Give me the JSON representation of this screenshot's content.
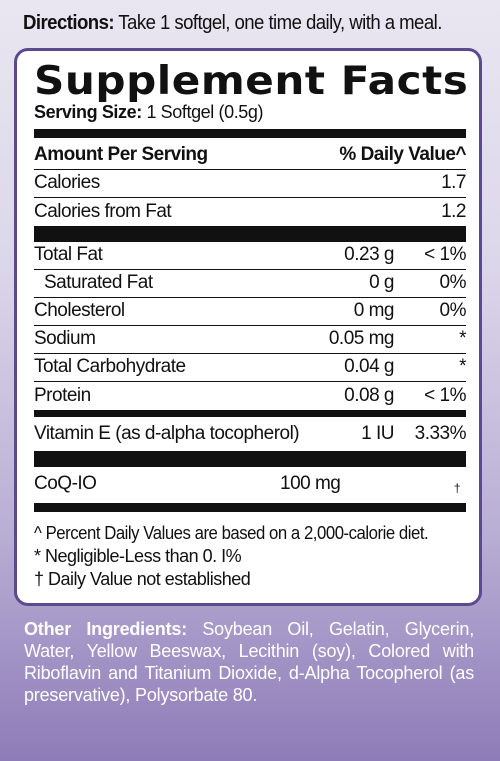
{
  "directions": {
    "label": "Directions:",
    "text": " Take 1 softgel, one time daily, with a meal."
  },
  "facts": {
    "title": "Supplement Facts",
    "serving_label": "Serving Size:",
    "serving_value": " 1 Softgel (0.5g)",
    "header_amount": "Amount Per Serving",
    "header_dv": "% Daily Value^",
    "calories": [
      {
        "name": "Calories",
        "amount": "",
        "dv": "1.7"
      },
      {
        "name": "Calories from Fat",
        "amount": "",
        "dv": "1.2"
      }
    ],
    "nutrients": [
      {
        "name": "Total Fat",
        "amount": "0.23 g",
        "dv": "< 1%"
      },
      {
        "name": "Saturated Fat",
        "amount": "0 g",
        "dv": "0%"
      },
      {
        "name": "Cholesterol",
        "amount": "0 mg",
        "dv": "0%"
      },
      {
        "name": "Sodium",
        "amount": "0.05 mg",
        "dv": "*"
      },
      {
        "name": "Total Carbohydrate",
        "amount": "0.04 g",
        "dv": "*"
      },
      {
        "name": "Protein",
        "amount": "0.08 g",
        "dv": "< 1%"
      }
    ],
    "vitamin": {
      "name": "Vitamin E (as d-alpha tocopherol)",
      "amount": "1 IU",
      "dv": "3.33%"
    },
    "coq": {
      "name": "CoQ-IO",
      "amount": "100 mg",
      "dv": "†"
    },
    "notes": [
      "^ Percent Daily Values are based on a 2,000-calorie diet.",
      "* Negligible-Less than 0. I%",
      "† Daily Value not established"
    ]
  },
  "other": {
    "label": "Other Ingredients:",
    "text": " Soybean Oil, Gelatin, Glycerin, Water, Yellow Beeswax, Lecithin (soy), Colored with Riboflavin and Titanium Dioxide, d-Alpha Tocopherol (as preservative), Polysorbate 80."
  }
}
